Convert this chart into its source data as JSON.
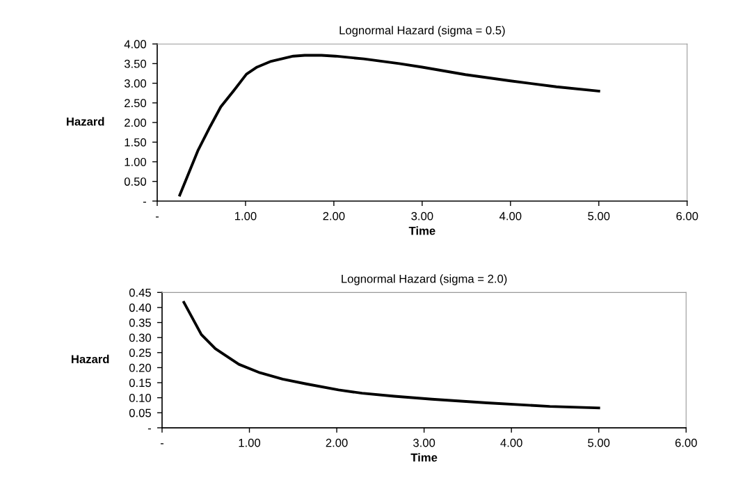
{
  "chart_data": [
    {
      "type": "line",
      "title": "Lognormal Hazard (sigma = 0.5)",
      "xlabel": "Time",
      "ylabel": "Hazard",
      "series": [
        {
          "color": "#000000",
          "x": [
            0.255,
            0.46,
            0.6,
            0.72,
            0.87,
            1.01,
            1.13,
            1.29,
            1.54,
            1.67,
            1.86,
            2.02,
            2.34,
            2.74,
            3.0,
            3.49,
            4.0,
            4.52,
            5.0
          ],
          "values": [
            0.15,
            1.28,
            1.9,
            2.4,
            2.82,
            3.23,
            3.41,
            3.56,
            3.69,
            3.71,
            3.71,
            3.69,
            3.62,
            3.5,
            3.41,
            3.22,
            3.06,
            2.91,
            2.8
          ]
        }
      ],
      "xlim": [
        0,
        6
      ],
      "xticks": [
        {
          "value": 0,
          "label": "-"
        },
        {
          "value": 1,
          "label": "1.00"
        },
        {
          "value": 2,
          "label": "2.00"
        },
        {
          "value": 3,
          "label": "3.00"
        },
        {
          "value": 4,
          "label": "4.00"
        },
        {
          "value": 5,
          "label": "5.00"
        },
        {
          "value": 6,
          "label": "6.00"
        }
      ],
      "ylim": [
        0,
        4
      ],
      "yticks": [
        {
          "value": 0,
          "label": "-"
        },
        {
          "value": 0.5,
          "label": "0.50"
        },
        {
          "value": 1,
          "label": "1.00"
        },
        {
          "value": 1.5,
          "label": "1.50"
        },
        {
          "value": 2,
          "label": "2.00"
        },
        {
          "value": 2.5,
          "label": "2.50"
        },
        {
          "value": 3,
          "label": "3.00"
        },
        {
          "value": 3.5,
          "label": "3.50"
        },
        {
          "value": 4,
          "label": "4.00"
        }
      ],
      "grid": false,
      "legend": false,
      "line_style": "solid",
      "marker": "none"
    },
    {
      "type": "line",
      "title": "Lognormal Hazard (sigma = 2.0)",
      "xlabel": "Time",
      "ylabel": "Hazard",
      "series": [
        {
          "color": "#000000",
          "x": [
            0.25,
            0.45,
            0.61,
            0.88,
            1.12,
            1.38,
            1.65,
            2.02,
            2.29,
            2.66,
            3.09,
            3.72,
            4.44,
            5.0
          ],
          "values": [
            0.417,
            0.31,
            0.263,
            0.211,
            0.183,
            0.162,
            0.146,
            0.126,
            0.115,
            0.105,
            0.095,
            0.083,
            0.071,
            0.066
          ]
        }
      ],
      "xlim": [
        0,
        6
      ],
      "xticks": [
        {
          "value": 0,
          "label": "-"
        },
        {
          "value": 1,
          "label": "1.00"
        },
        {
          "value": 2,
          "label": "2.00"
        },
        {
          "value": 3,
          "label": "3.00"
        },
        {
          "value": 4,
          "label": "4.00"
        },
        {
          "value": 5,
          "label": "5.00"
        },
        {
          "value": 6,
          "label": "6.00"
        }
      ],
      "ylim": [
        0,
        0.45
      ],
      "yticks": [
        {
          "value": 0,
          "label": "-"
        },
        {
          "value": 0.05,
          "label": "0.05"
        },
        {
          "value": 0.1,
          "label": "0.10"
        },
        {
          "value": 0.15,
          "label": "0.15"
        },
        {
          "value": 0.2,
          "label": "0.20"
        },
        {
          "value": 0.25,
          "label": "0.25"
        },
        {
          "value": 0.3,
          "label": "0.30"
        },
        {
          "value": 0.35,
          "label": "0.35"
        },
        {
          "value": 0.4,
          "label": "0.40"
        },
        {
          "value": 0.45,
          "label": "0.45"
        }
      ],
      "grid": false,
      "legend": false,
      "line_style": "solid",
      "marker": "none"
    }
  ]
}
